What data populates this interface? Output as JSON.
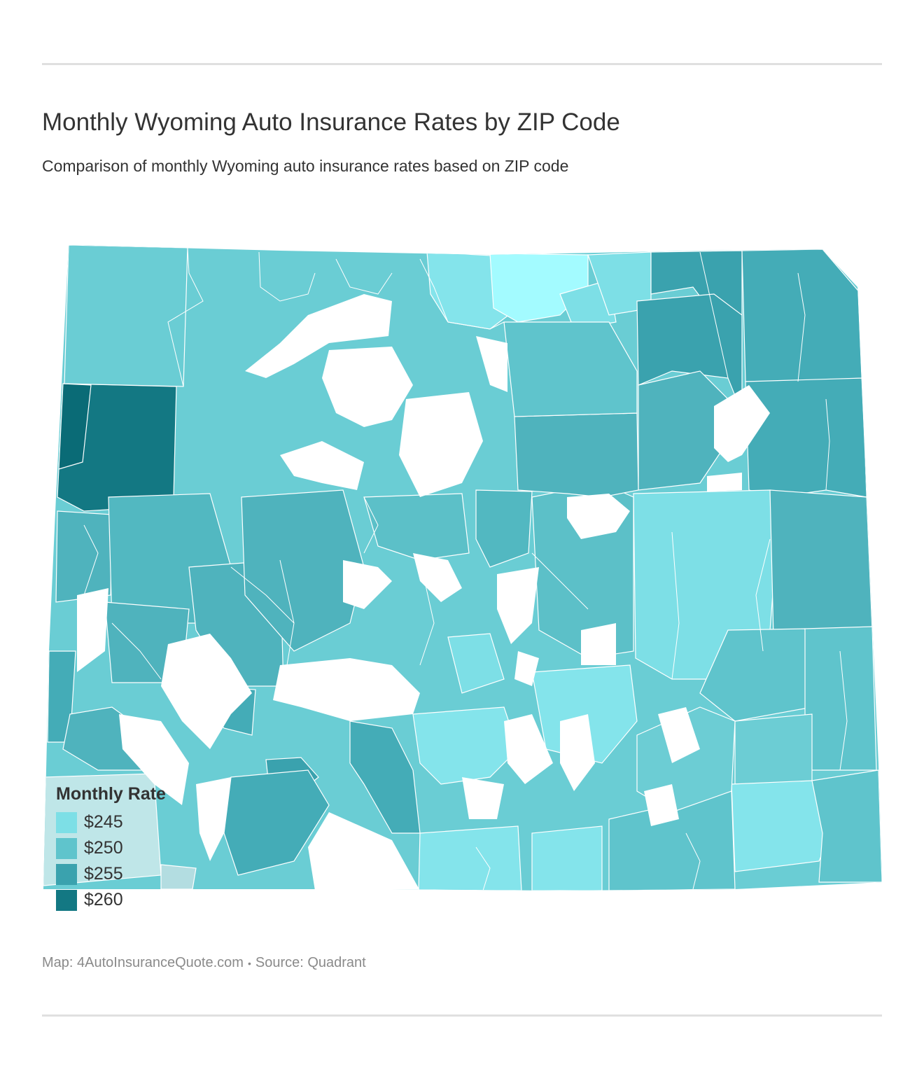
{
  "header": {
    "title": "Monthly Wyoming Auto Insurance Rates by ZIP Code",
    "subtitle": "Comparison of monthly Wyoming auto insurance rates based on ZIP code"
  },
  "legend": {
    "title": "Monthly Rate",
    "items": [
      {
        "label": "$245",
        "color": "#7ddfe6"
      },
      {
        "label": "$250",
        "color": "#5fc4cc"
      },
      {
        "label": "$255",
        "color": "#3aa2ae"
      },
      {
        "label": "$260",
        "color": "#137883"
      }
    ]
  },
  "footer": {
    "map_credit": "Map: 4AutoInsuranceQuote.com",
    "separator": "•",
    "source": "Source: Quadrant"
  },
  "chart_data": {
    "type": "choropleth",
    "region": "Wyoming",
    "unit": "ZIP code",
    "value_label": "Monthly Rate",
    "classes": [
      245,
      250,
      255,
      260
    ],
    "colors": {
      "245": "#7ddfe6",
      "250": "#5fc4cc",
      "255": "#3aa2ae",
      "260": "#137883",
      "lightest": "#a3fbff",
      "no_data": "#ffffff",
      "border": "#ffffff"
    }
  }
}
